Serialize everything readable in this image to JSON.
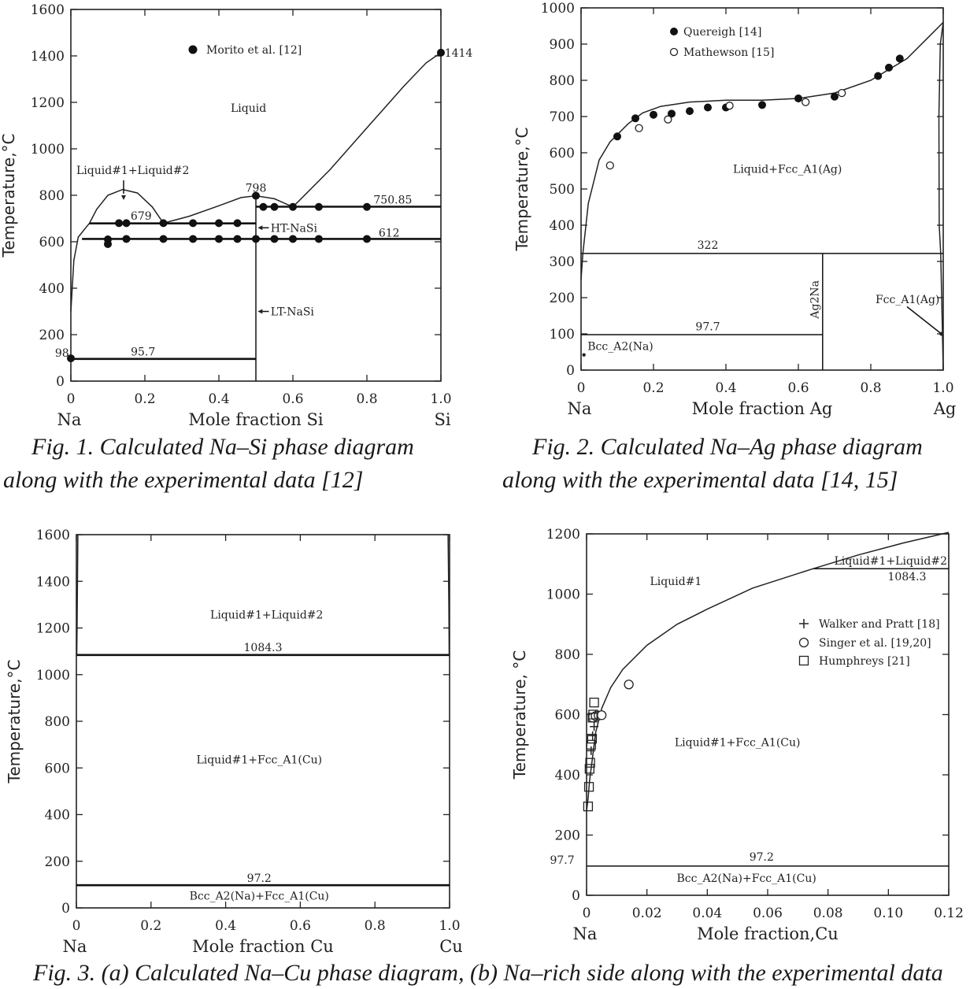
{
  "chart_data": [
    {
      "type": "scatter",
      "xlabel": "Mole  fraction  Si",
      "ylabel": "Temperature,°C",
      "x_end_labels": [
        "Na",
        "Si"
      ],
      "xlim": [
        0,
        1
      ],
      "ylim": [
        0,
        1600
      ],
      "x_ticks": [
        "0",
        "0.2",
        "0.4",
        "0.6",
        "0.8",
        "1.0"
      ],
      "y_ticks": [
        "0",
        "200",
        "400",
        "600",
        "800",
        "1000",
        "1200",
        "1400",
        "1600"
      ],
      "legend": "top-center",
      "series": [
        {
          "name": "Morito et al. [12]",
          "marker": "filled-circle",
          "x": [
            0.1,
            0.1,
            0.13,
            0.15,
            0.15,
            0.25,
            0.25,
            0.33,
            0.33,
            0.4,
            0.4,
            0.45,
            0.45,
            0.5,
            0.5,
            0.52,
            0.55,
            0.55,
            0.6,
            0.6,
            0.67,
            0.67,
            0.8,
            0.8,
            0,
            1.0
          ],
          "y": [
            590,
            610,
            680,
            680,
            612,
            680,
            612,
            680,
            612,
            680,
            612,
            680,
            612,
            798,
            612,
            750,
            750,
            612,
            750,
            612,
            750,
            612,
            750,
            612,
            98,
            1414
          ]
        }
      ],
      "phase_lines": [
        {
          "label": "95.7",
          "y": 95.7,
          "x": [
            0,
            0.5
          ]
        },
        {
          "label": "679",
          "y": 679,
          "x": [
            0.05,
            0.5
          ]
        },
        {
          "label": "612",
          "y": 612,
          "x": [
            0.03,
            1.0
          ]
        },
        {
          "label": "750.85",
          "y": 750.85,
          "x": [
            0.5,
            1.0
          ]
        }
      ],
      "annotations": [
        "Liquid",
        "Liquid#1+Liquid#2",
        "798",
        "HT-NaSi",
        "LT-NaSi",
        "98",
        "1414"
      ]
    },
    {
      "type": "scatter",
      "xlabel": "Mole fraction Ag",
      "ylabel": "Temperature,°C",
      "x_end_labels": [
        "Na",
        "Ag"
      ],
      "xlim": [
        0,
        1
      ],
      "ylim": [
        0,
        1000
      ],
      "x_ticks": [
        "0",
        "0.2",
        "0.4",
        "0.6",
        "0.8",
        "1.0"
      ],
      "y_ticks": [
        "0",
        "100",
        "200",
        "300",
        "400",
        "500",
        "600",
        "700",
        "800",
        "900",
        "1000"
      ],
      "legend": "top-left",
      "series": [
        {
          "name": "Quereigh [14]",
          "marker": "filled-circle",
          "x": [
            0.1,
            0.15,
            0.2,
            0.25,
            0.3,
            0.35,
            0.4,
            0.5,
            0.6,
            0.7,
            0.82,
            0.85,
            0.88
          ],
          "y": [
            645,
            695,
            705,
            708,
            715,
            725,
            725,
            732,
            750,
            755,
            812,
            835,
            860
          ]
        },
        {
          "name": "Mathewson [15]",
          "marker": "open-circle",
          "x": [
            0.08,
            0.16,
            0.24,
            0.41,
            0.62,
            0.72
          ],
          "y": [
            565,
            668,
            692,
            730,
            740,
            765
          ]
        }
      ],
      "phase_lines": [
        {
          "label": "322",
          "y": 322,
          "x": [
            0,
            1.0
          ]
        },
        {
          "label": "97.7",
          "y": 97.7,
          "x": [
            0,
            0.667
          ]
        }
      ],
      "annotations": [
        "Liquid+Fcc_A1(Ag)",
        "Ag2Na",
        "Fcc_A1(Ag)",
        "Bcc_A2(Na)"
      ]
    },
    {
      "type": "line",
      "xlabel": "Mole fraction Cu",
      "ylabel": "Temperature,°C",
      "x_end_labels": [
        "Na",
        "Cu"
      ],
      "xlim": [
        0,
        1
      ],
      "ylim": [
        0,
        1600
      ],
      "x_ticks": [
        "0",
        "0.2",
        "0.4",
        "0.6",
        "0.8",
        "1.0"
      ],
      "y_ticks": [
        "0",
        "200",
        "400",
        "600",
        "800",
        "1000",
        "1200",
        "1400",
        "1600"
      ],
      "phase_lines": [
        {
          "label": "1084.3",
          "y": 1084.3,
          "x": [
            0,
            1.0
          ]
        },
        {
          "label": "97.2",
          "y": 97.2,
          "x": [
            0,
            1.0
          ]
        }
      ],
      "annotations": [
        "Liquid#1+Liquid#2",
        "Liquid#1+Fcc_A1(Cu)",
        "Bcc_A2(Na)+Fcc_A1(Cu)"
      ]
    },
    {
      "type": "scatter",
      "xlabel": "Mole  fraction,Cu",
      "ylabel": "Temperature, °C",
      "x_end_labels": [
        "Na"
      ],
      "xlim": [
        0,
        0.12
      ],
      "ylim": [
        0,
        1200
      ],
      "x_ticks": [
        "0",
        "0.02",
        "0.04",
        "0.06",
        "0.08",
        "0.10",
        "0.12"
      ],
      "y_ticks": [
        "0",
        "200",
        "400",
        "600",
        "800",
        "1000",
        "1200"
      ],
      "legend": "right",
      "series": [
        {
          "name": "Walker and Pratt  [18]",
          "marker": "plus",
          "x": [
            0.0015,
            0.002,
            0.0025,
            0.003
          ],
          "y": [
            480,
            530,
            560,
            600
          ]
        },
        {
          "name": "Singer et al. [19,20]",
          "marker": "open-circle",
          "x": [
            0.002,
            0.003,
            0.004,
            0.005,
            0.014
          ],
          "y": [
            590,
            595,
            597,
            598,
            700
          ]
        },
        {
          "name": "Humphreys [21]",
          "marker": "open-square",
          "x": [
            0.0005,
            0.0008,
            0.001,
            0.0012,
            0.0015,
            0.0018,
            0.002,
            0.0022,
            0.0025
          ],
          "y": [
            295,
            360,
            420,
            440,
            500,
            520,
            590,
            600,
            640
          ]
        }
      ],
      "phase_lines": [
        {
          "label": "97.2",
          "y": 97.2,
          "x": [
            0,
            0.12
          ]
        },
        {
          "label": "1084.3",
          "y": 1084.3,
          "x": [
            0.075,
            0.12
          ]
        }
      ],
      "annotations": [
        "Liquid#1",
        "Liquid#1+Liquid#2",
        "Liquid#1+Fcc_A1(Cu)",
        "Bcc_A2(Na)+Fcc_A1(Cu)",
        "97.7"
      ]
    }
  ],
  "captions": {
    "fig1_line1": "Fig.  1.  Calculated  Na–Si  phase  diagram",
    "fig1_line2": "along with the experimental data [12]",
    "fig2_line1": "Fig.  2.  Calculated  Na–Ag  phase  diagram",
    "fig2_line2": "along with the experimental data [14, 15]",
    "fig3_line1": "Fig. 3. (a) Calculated Na–Cu phase diagram, (b) Na–rich side along with the experimental data"
  },
  "colors": {
    "ink": "#111111",
    "background": "#ffffff"
  }
}
